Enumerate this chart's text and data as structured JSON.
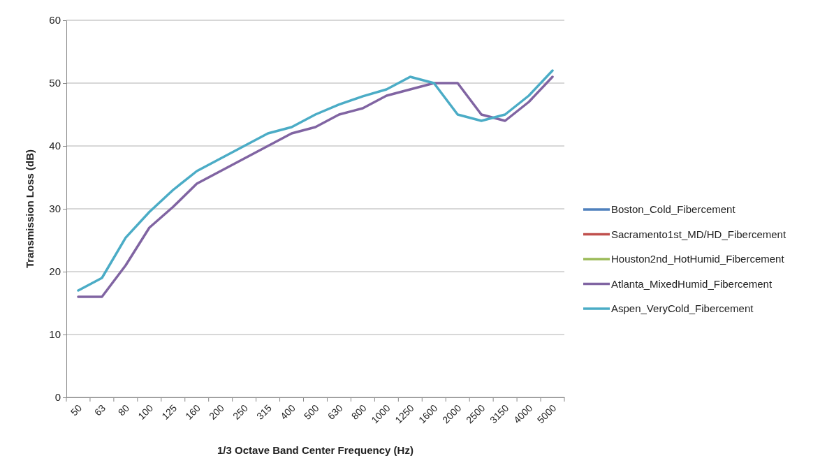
{
  "chart_data": {
    "type": "line",
    "xlabel": "1/3 Octave Band Center Frequency (Hz)",
    "ylabel": "Transmission Loss (dB)",
    "categories": [
      "50",
      "63",
      "80",
      "100",
      "125",
      "160",
      "200",
      "250",
      "315",
      "400",
      "500",
      "630",
      "800",
      "1000",
      "1250",
      "1600",
      "2000",
      "2500",
      "3150",
      "4000",
      "5000"
    ],
    "ylim": [
      0,
      60
    ],
    "yticks": [
      0,
      10,
      20,
      30,
      40,
      50,
      60
    ],
    "grid": "y",
    "legend": "right",
    "marker": "none",
    "line_style": "solid",
    "series": [
      {
        "name": "Boston_Cold_Fibercement",
        "color": "#4f81bd",
        "values": [
          null,
          null,
          null,
          null,
          null,
          null,
          null,
          null,
          null,
          null,
          null,
          null,
          null,
          null,
          null,
          null,
          null,
          null,
          null,
          null,
          null
        ]
      },
      {
        "name": "Sacramento1st_MD/HD_Fibercement",
        "color": "#c0504d",
        "values": [
          null,
          null,
          null,
          null,
          null,
          null,
          null,
          null,
          null,
          null,
          null,
          null,
          null,
          null,
          null,
          null,
          null,
          null,
          null,
          null,
          null
        ]
      },
      {
        "name": "Houston2nd_HotHumid_Fibercement",
        "color": "#9bbb59",
        "values": [
          null,
          null,
          null,
          null,
          null,
          null,
          null,
          null,
          null,
          null,
          null,
          null,
          null,
          null,
          null,
          null,
          null,
          null,
          null,
          null,
          null
        ]
      },
      {
        "name": "Atlanta_MixedHumid_Fibercement",
        "color": "#8064a2",
        "values": [
          16,
          16,
          21,
          27,
          30.3,
          34,
          36,
          38,
          40,
          42,
          43,
          45,
          46,
          48,
          49,
          50,
          50,
          45,
          44,
          47,
          51
        ]
      },
      {
        "name": "Aspen_VeryCold_Fibercement",
        "color": "#4bacc6",
        "values": [
          17,
          19,
          25.4,
          29.5,
          33,
          36,
          38,
          40,
          42,
          43,
          45,
          46.6,
          47.9,
          49,
          51,
          50,
          45,
          44,
          45,
          48,
          52
        ]
      }
    ]
  }
}
